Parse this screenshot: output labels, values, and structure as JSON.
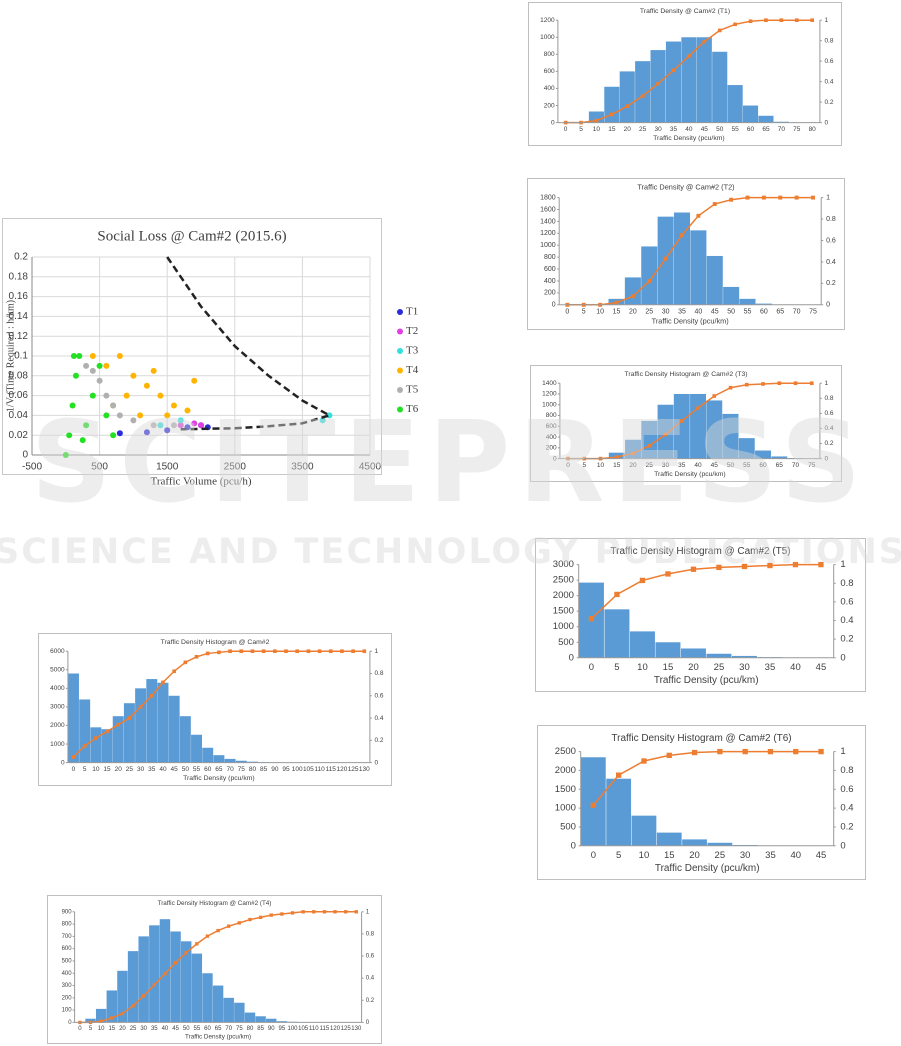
{
  "watermark": {
    "main": "SCITEPRESS",
    "sub": "SCIENCE AND TECHNOLOGY PUBLICATIONS"
  },
  "chart_data": [
    {
      "type": "scatter",
      "title": "Social Loss @ Cam#2 (2015.6)",
      "x_label": "Traffic Volume (pcu/h)",
      "y_label": "1/V (Time Required : h/km)",
      "xlim": [
        -500,
        4500
      ],
      "xticks": [
        -500,
        500,
        1500,
        2500,
        3500,
        4500
      ],
      "ylim": [
        0,
        0.2
      ],
      "yticks": [
        0,
        0.02,
        0.04,
        0.06,
        0.08,
        0.1,
        0.12,
        0.14,
        0.16,
        0.18,
        0.2
      ],
      "grid": true,
      "series": [
        {
          "name": "T1",
          "color": "#2b2bdc",
          "x": [
            800,
            1200,
            1500,
            1800,
            2000,
            2100
          ],
          "y": [
            0.022,
            0.023,
            0.025,
            0.028,
            0.03,
            0.028
          ]
        },
        {
          "name": "T2",
          "color": "#e040e0",
          "x": [
            1700,
            1900,
            2000
          ],
          "y": [
            0.03,
            0.032,
            0.03
          ]
        },
        {
          "name": "T3",
          "color": "#33e0e0",
          "x": [
            1400,
            1700,
            3800,
            3900
          ],
          "y": [
            0.03,
            0.035,
            0.035,
            0.04
          ]
        },
        {
          "name": "T4",
          "color": "#ffb400",
          "x": [
            400,
            600,
            800,
            1000,
            1200,
            1400,
            1600,
            1800,
            900,
            1100,
            700,
            1300,
            1500,
            1900
          ],
          "y": [
            0.1,
            0.09,
            0.1,
            0.08,
            0.07,
            0.06,
            0.05,
            0.045,
            0.06,
            0.04,
            0.05,
            0.085,
            0.04,
            0.075
          ]
        },
        {
          "name": "T5",
          "color": "#b0b0b0",
          "x": [
            300,
            400,
            500,
            600,
            700,
            800,
            1000,
            1300,
            1600
          ],
          "y": [
            0.09,
            0.085,
            0.075,
            0.06,
            0.05,
            0.04,
            0.035,
            0.03,
            0.03
          ]
        },
        {
          "name": "T6",
          "color": "#22e022",
          "x": [
            0,
            50,
            100,
            150,
            200,
            300,
            400,
            500,
            600,
            700,
            250,
            120
          ],
          "y": [
            0,
            0.02,
            0.05,
            0.08,
            0.1,
            0.03,
            0.06,
            0.09,
            0.04,
            0.02,
            0.015,
            0.1
          ]
        }
      ],
      "curve": {
        "color": "#222222",
        "x": [
          1500,
          2000,
          2500,
          3000,
          3500,
          3900,
          3500,
          3000,
          2500,
          1700
        ],
        "y": [
          0.2,
          0.15,
          0.11,
          0.08,
          0.055,
          0.04,
          0.032,
          0.029,
          0.027,
          0.026
        ]
      }
    },
    {
      "type": "bar",
      "title": "Traffic Density @ Cam#2  (T1)",
      "x_label": "Traffic Density (pcu/km)",
      "categories": [
        0,
        5,
        10,
        15,
        20,
        25,
        30,
        35,
        40,
        45,
        50,
        55,
        60,
        65,
        70,
        75,
        80
      ],
      "ylim": [
        0,
        1200
      ],
      "yticks": [
        0,
        200,
        400,
        600,
        800,
        1000,
        1200
      ],
      "y2lim": [
        0,
        1
      ],
      "y2ticks": [
        0,
        0.2,
        0.4,
        0.6,
        0.8,
        1
      ],
      "series": [
        {
          "color": "#5b9bd5",
          "values": [
            0,
            0,
            130,
            420,
            600,
            720,
            850,
            950,
            1000,
            1000,
            830,
            440,
            200,
            80,
            10,
            0,
            0
          ]
        },
        {
          "type": "line",
          "axis": "y2",
          "color": "#ed7d31",
          "values": [
            0,
            0,
            0.02,
            0.08,
            0.16,
            0.26,
            0.38,
            0.51,
            0.65,
            0.79,
            0.9,
            0.96,
            0.99,
            1,
            1,
            1,
            1
          ]
        }
      ]
    },
    {
      "type": "bar",
      "title": "Traffic Density @ Cam#2 (T2)",
      "x_label": "Traffic Density (pcu/km)",
      "categories": [
        0,
        5,
        10,
        15,
        20,
        25,
        30,
        35,
        40,
        45,
        50,
        55,
        60,
        65,
        70,
        75
      ],
      "ylim": [
        0,
        1800
      ],
      "yticks": [
        0,
        200,
        400,
        600,
        800,
        1000,
        1200,
        1400,
        1600,
        1800
      ],
      "y2lim": [
        0,
        1
      ],
      "y2ticks": [
        0,
        0.2,
        0.4,
        0.6,
        0.8,
        1
      ],
      "series": [
        {
          "color": "#5b9bd5",
          "values": [
            0,
            0,
            0,
            100,
            460,
            980,
            1480,
            1550,
            1250,
            820,
            300,
            100,
            20,
            0,
            0,
            0
          ]
        },
        {
          "type": "line",
          "axis": "y2",
          "color": "#ed7d31",
          "values": [
            0,
            0,
            0,
            0.02,
            0.08,
            0.22,
            0.43,
            0.65,
            0.83,
            0.94,
            0.98,
            1,
            1,
            1,
            1,
            1
          ]
        }
      ]
    },
    {
      "type": "bar",
      "title": "Traffic Density Histogram @ Cam#2 (T3)",
      "x_label": "Traffic Density (pcu/km)",
      "categories": [
        0,
        5,
        10,
        15,
        20,
        25,
        30,
        35,
        40,
        45,
        50,
        55,
        60,
        65,
        70,
        75
      ],
      "ylim": [
        0,
        1400
      ],
      "yticks": [
        0,
        200,
        400,
        600,
        800,
        1000,
        1200,
        1400
      ],
      "y2lim": [
        0,
        1
      ],
      "y2ticks": [
        0,
        0.2,
        0.4,
        0.6,
        0.8,
        1
      ],
      "series": [
        {
          "color": "#5b9bd5",
          "values": [
            0,
            0,
            0,
            110,
            350,
            700,
            1000,
            1200,
            1200,
            1080,
            830,
            380,
            150,
            40,
            10,
            0
          ]
        },
        {
          "type": "line",
          "axis": "y2",
          "color": "#ed7d31",
          "values": [
            0,
            0,
            0,
            0.02,
            0.07,
            0.17,
            0.32,
            0.5,
            0.67,
            0.83,
            0.94,
            0.98,
            0.99,
            1,
            1,
            1
          ]
        }
      ]
    },
    {
      "type": "bar",
      "title": "Traffic Density Histogram @ Cam#2 (T5)",
      "x_label": "Traffic Density (pcu/km)",
      "categories": [
        0,
        5,
        10,
        15,
        20,
        25,
        30,
        35,
        40,
        45
      ],
      "ylim": [
        0,
        3000
      ],
      "yticks": [
        0,
        500,
        1000,
        1500,
        2000,
        2500,
        3000
      ],
      "y2lim": [
        0,
        1
      ],
      "y2ticks": [
        0,
        0.2,
        0.4,
        0.6,
        0.8,
        1
      ],
      "series": [
        {
          "color": "#5b9bd5",
          "values": [
            2420,
            1560,
            850,
            500,
            300,
            130,
            60,
            20,
            5,
            0
          ]
        },
        {
          "type": "line",
          "axis": "y2",
          "color": "#ed7d31",
          "values": [
            0.42,
            0.68,
            0.83,
            0.9,
            0.95,
            0.97,
            0.98,
            0.99,
            1,
            1
          ]
        }
      ]
    },
    {
      "type": "bar",
      "title": "Traffic Density Histogram @ Cam#2 (T6)",
      "x_label": "Traffic Density (pcu/km)",
      "categories": [
        0,
        5,
        10,
        15,
        20,
        25,
        30,
        35,
        40,
        45
      ],
      "ylim": [
        0,
        2500
      ],
      "yticks": [
        0,
        500,
        1000,
        1500,
        2000,
        2500
      ],
      "y2lim": [
        0,
        1
      ],
      "y2ticks": [
        0,
        0.2,
        0.4,
        0.6,
        0.8,
        1
      ],
      "series": [
        {
          "color": "#5b9bd5",
          "values": [
            2350,
            1780,
            800,
            350,
            170,
            80,
            20,
            5,
            0,
            0
          ]
        },
        {
          "type": "line",
          "axis": "y2",
          "color": "#ed7d31",
          "values": [
            0.43,
            0.75,
            0.9,
            0.96,
            0.99,
            1,
            1,
            1,
            1,
            1
          ]
        }
      ]
    },
    {
      "type": "bar",
      "title": "Traffic Density Histogram @ Cam#2",
      "x_label": "Traffic Density (pcu/km)",
      "categories": [
        0,
        5,
        10,
        15,
        20,
        25,
        30,
        35,
        40,
        45,
        50,
        55,
        60,
        65,
        70,
        75,
        80,
        85,
        90,
        95,
        100,
        105,
        110,
        115,
        120,
        125,
        130
      ],
      "ylim": [
        0,
        6000
      ],
      "yticks": [
        0,
        1000,
        2000,
        3000,
        4000,
        5000,
        6000
      ],
      "y2lim": [
        0,
        1
      ],
      "y2ticks": [
        0,
        0.2,
        0.4,
        0.6,
        0.8,
        1
      ],
      "series": [
        {
          "color": "#5b9bd5",
          "values": [
            4800,
            3400,
            1900,
            1800,
            2500,
            3200,
            4000,
            4500,
            4300,
            3600,
            2500,
            1500,
            800,
            400,
            200,
            100,
            50,
            20,
            10,
            0,
            0,
            0,
            0,
            0,
            0,
            0,
            0
          ]
        },
        {
          "type": "line",
          "axis": "y2",
          "color": "#ed7d31",
          "values": [
            0.05,
            0.15,
            0.22,
            0.28,
            0.34,
            0.4,
            0.5,
            0.6,
            0.72,
            0.82,
            0.9,
            0.95,
            0.98,
            0.99,
            1,
            1,
            1,
            1,
            1,
            1,
            1,
            1,
            1,
            1,
            1,
            1,
            1
          ]
        }
      ]
    },
    {
      "type": "bar",
      "title": "Traffic Density Histogram @ Cam#2 (T4)",
      "x_label": "Traffic Density (pcu/km)",
      "categories": [
        0,
        5,
        10,
        15,
        20,
        25,
        30,
        35,
        40,
        45,
        50,
        55,
        60,
        65,
        70,
        75,
        80,
        85,
        90,
        95,
        100,
        105,
        110,
        115,
        120,
        125,
        130
      ],
      "ylim": [
        0,
        900
      ],
      "yticks": [
        0,
        100,
        200,
        300,
        400,
        500,
        600,
        700,
        800,
        900
      ],
      "y2lim": [
        0,
        1
      ],
      "y2ticks": [
        0,
        0.2,
        0.4,
        0.6,
        0.8,
        1
      ],
      "series": [
        {
          "color": "#5b9bd5",
          "values": [
            0,
            30,
            110,
            260,
            420,
            580,
            700,
            790,
            840,
            740,
            660,
            560,
            400,
            300,
            200,
            160,
            80,
            50,
            30,
            10,
            5,
            0,
            0,
            0,
            0,
            0,
            0
          ]
        },
        {
          "type": "line",
          "axis": "y2",
          "color": "#ed7d31",
          "values": [
            0,
            0,
            0.01,
            0.04,
            0.08,
            0.15,
            0.24,
            0.34,
            0.44,
            0.54,
            0.63,
            0.71,
            0.78,
            0.83,
            0.87,
            0.9,
            0.93,
            0.95,
            0.97,
            0.98,
            0.99,
            1,
            1,
            1,
            1,
            1,
            1
          ]
        }
      ]
    }
  ]
}
